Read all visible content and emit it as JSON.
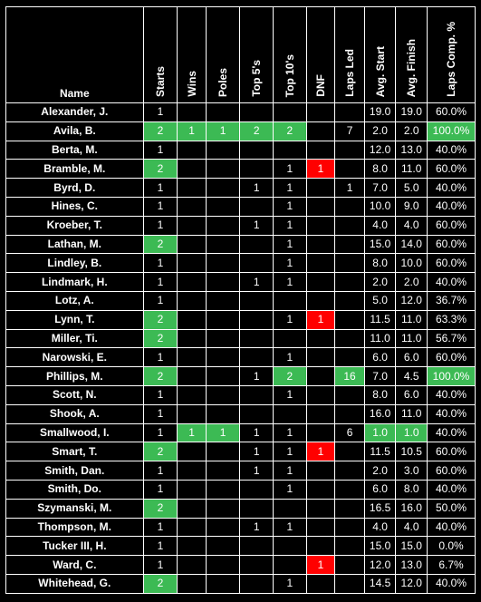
{
  "table": {
    "headers": [
      "Name",
      "Starts",
      "Wins",
      "Poles",
      "Top 5's",
      "Top 10's",
      "DNF",
      "Laps Led",
      "Avg. Start",
      "Avg. Finish",
      "Laps Comp. %"
    ],
    "colors": {
      "highlight_best": "#3cba54",
      "highlight_dnf": "#ff0000",
      "background": "#000000",
      "text": "#ffffff"
    },
    "rows": [
      {
        "name": "Alexander, J.",
        "starts": "1",
        "wins": "",
        "poles": "",
        "top5": "",
        "top10": "",
        "dnf": "",
        "laps_led": "",
        "avg_start": "19.0",
        "avg_finish": "19.0",
        "laps_comp": "60.0%"
      },
      {
        "name": "Avila, B.",
        "starts": "2",
        "wins": "1",
        "poles": "1",
        "top5": "2",
        "top10": "2",
        "dnf": "",
        "laps_led": "7",
        "avg_start": "2.0",
        "avg_finish": "2.0",
        "laps_comp": "100.0%"
      },
      {
        "name": "Berta, M.",
        "starts": "1",
        "wins": "",
        "poles": "",
        "top5": "",
        "top10": "",
        "dnf": "",
        "laps_led": "",
        "avg_start": "12.0",
        "avg_finish": "13.0",
        "laps_comp": "40.0%"
      },
      {
        "name": "Bramble, M.",
        "starts": "2",
        "wins": "",
        "poles": "",
        "top5": "",
        "top10": "1",
        "dnf": "1",
        "laps_led": "",
        "avg_start": "8.0",
        "avg_finish": "11.0",
        "laps_comp": "60.0%"
      },
      {
        "name": "Byrd, D.",
        "starts": "1",
        "wins": "",
        "poles": "",
        "top5": "1",
        "top10": "1",
        "dnf": "",
        "laps_led": "1",
        "avg_start": "7.0",
        "avg_finish": "5.0",
        "laps_comp": "40.0%"
      },
      {
        "name": "Hines, C.",
        "starts": "1",
        "wins": "",
        "poles": "",
        "top5": "",
        "top10": "1",
        "dnf": "",
        "laps_led": "",
        "avg_start": "10.0",
        "avg_finish": "9.0",
        "laps_comp": "40.0%"
      },
      {
        "name": "Kroeber, T.",
        "starts": "1",
        "wins": "",
        "poles": "",
        "top5": "1",
        "top10": "1",
        "dnf": "",
        "laps_led": "",
        "avg_start": "4.0",
        "avg_finish": "4.0",
        "laps_comp": "60.0%"
      },
      {
        "name": "Lathan, M.",
        "starts": "2",
        "wins": "",
        "poles": "",
        "top5": "",
        "top10": "1",
        "dnf": "",
        "laps_led": "",
        "avg_start": "15.0",
        "avg_finish": "14.0",
        "laps_comp": "60.0%"
      },
      {
        "name": "Lindley, B.",
        "starts": "1",
        "wins": "",
        "poles": "",
        "top5": "",
        "top10": "1",
        "dnf": "",
        "laps_led": "",
        "avg_start": "8.0",
        "avg_finish": "10.0",
        "laps_comp": "60.0%"
      },
      {
        "name": "Lindmark, H.",
        "starts": "1",
        "wins": "",
        "poles": "",
        "top5": "1",
        "top10": "1",
        "dnf": "",
        "laps_led": "",
        "avg_start": "2.0",
        "avg_finish": "2.0",
        "laps_comp": "40.0%"
      },
      {
        "name": "Lotz, A.",
        "starts": "1",
        "wins": "",
        "poles": "",
        "top5": "",
        "top10": "",
        "dnf": "",
        "laps_led": "",
        "avg_start": "5.0",
        "avg_finish": "12.0",
        "laps_comp": "36.7%"
      },
      {
        "name": "Lynn, T.",
        "starts": "2",
        "wins": "",
        "poles": "",
        "top5": "",
        "top10": "1",
        "dnf": "1",
        "laps_led": "",
        "avg_start": "11.5",
        "avg_finish": "11.0",
        "laps_comp": "63.3%"
      },
      {
        "name": "Miller, Ti.",
        "starts": "2",
        "wins": "",
        "poles": "",
        "top5": "",
        "top10": "",
        "dnf": "",
        "laps_led": "",
        "avg_start": "11.0",
        "avg_finish": "11.0",
        "laps_comp": "56.7%"
      },
      {
        "name": "Narowski, E.",
        "starts": "1",
        "wins": "",
        "poles": "",
        "top5": "",
        "top10": "1",
        "dnf": "",
        "laps_led": "",
        "avg_start": "6.0",
        "avg_finish": "6.0",
        "laps_comp": "60.0%"
      },
      {
        "name": "Phillips, M.",
        "starts": "2",
        "wins": "",
        "poles": "",
        "top5": "1",
        "top10": "2",
        "dnf": "",
        "laps_led": "16",
        "avg_start": "7.0",
        "avg_finish": "4.5",
        "laps_comp": "100.0%"
      },
      {
        "name": "Scott, N.",
        "starts": "1",
        "wins": "",
        "poles": "",
        "top5": "",
        "top10": "1",
        "dnf": "",
        "laps_led": "",
        "avg_start": "8.0",
        "avg_finish": "6.0",
        "laps_comp": "40.0%"
      },
      {
        "name": "Shook, A.",
        "starts": "1",
        "wins": "",
        "poles": "",
        "top5": "",
        "top10": "",
        "dnf": "",
        "laps_led": "",
        "avg_start": "16.0",
        "avg_finish": "11.0",
        "laps_comp": "40.0%"
      },
      {
        "name": "Smallwood, I.",
        "starts": "1",
        "wins": "1",
        "poles": "1",
        "top5": "1",
        "top10": "1",
        "dnf": "",
        "laps_led": "6",
        "avg_start": "1.0",
        "avg_finish": "1.0",
        "laps_comp": "40.0%"
      },
      {
        "name": "Smart, T.",
        "starts": "2",
        "wins": "",
        "poles": "",
        "top5": "1",
        "top10": "1",
        "dnf": "1",
        "laps_led": "",
        "avg_start": "11.5",
        "avg_finish": "10.5",
        "laps_comp": "60.0%"
      },
      {
        "name": "Smith, Dan.",
        "starts": "1",
        "wins": "",
        "poles": "",
        "top5": "1",
        "top10": "1",
        "dnf": "",
        "laps_led": "",
        "avg_start": "2.0",
        "avg_finish": "3.0",
        "laps_comp": "60.0%"
      },
      {
        "name": "Smith, Do.",
        "starts": "1",
        "wins": "",
        "poles": "",
        "top5": "",
        "top10": "1",
        "dnf": "",
        "laps_led": "",
        "avg_start": "6.0",
        "avg_finish": "8.0",
        "laps_comp": "40.0%"
      },
      {
        "name": "Szymanski, M.",
        "starts": "2",
        "wins": "",
        "poles": "",
        "top5": "",
        "top10": "",
        "dnf": "",
        "laps_led": "",
        "avg_start": "16.5",
        "avg_finish": "16.0",
        "laps_comp": "50.0%"
      },
      {
        "name": "Thompson, M.",
        "starts": "1",
        "wins": "",
        "poles": "",
        "top5": "1",
        "top10": "1",
        "dnf": "",
        "laps_led": "",
        "avg_start": "4.0",
        "avg_finish": "4.0",
        "laps_comp": "40.0%"
      },
      {
        "name": "Tucker III, H.",
        "starts": "1",
        "wins": "",
        "poles": "",
        "top5": "",
        "top10": "",
        "dnf": "",
        "laps_led": "",
        "avg_start": "15.0",
        "avg_finish": "15.0",
        "laps_comp": "0.0%"
      },
      {
        "name": "Ward, C.",
        "starts": "1",
        "wins": "",
        "poles": "",
        "top5": "",
        "top10": "",
        "dnf": "1",
        "laps_led": "",
        "avg_start": "12.0",
        "avg_finish": "13.0",
        "laps_comp": "6.7%"
      },
      {
        "name": "Whitehead, G.",
        "starts": "2",
        "wins": "",
        "poles": "",
        "top5": "",
        "top10": "1",
        "dnf": "",
        "laps_led": "",
        "avg_start": "14.5",
        "avg_finish": "12.0",
        "laps_comp": "40.0%"
      }
    ],
    "highlights": {
      "green": {
        "starts": [
          1,
          3,
          7,
          11,
          12,
          14,
          18,
          21,
          25
        ],
        "wins": [
          1,
          17
        ],
        "poles": [
          1,
          17
        ],
        "top5": [
          1
        ],
        "top10": [
          1,
          14
        ],
        "laps_led": [
          14
        ],
        "avg_start": [
          17
        ],
        "avg_finish": [
          17
        ],
        "laps_comp": [
          1,
          14
        ]
      },
      "red": {
        "dnf": [
          3,
          11,
          18,
          24
        ]
      }
    }
  }
}
